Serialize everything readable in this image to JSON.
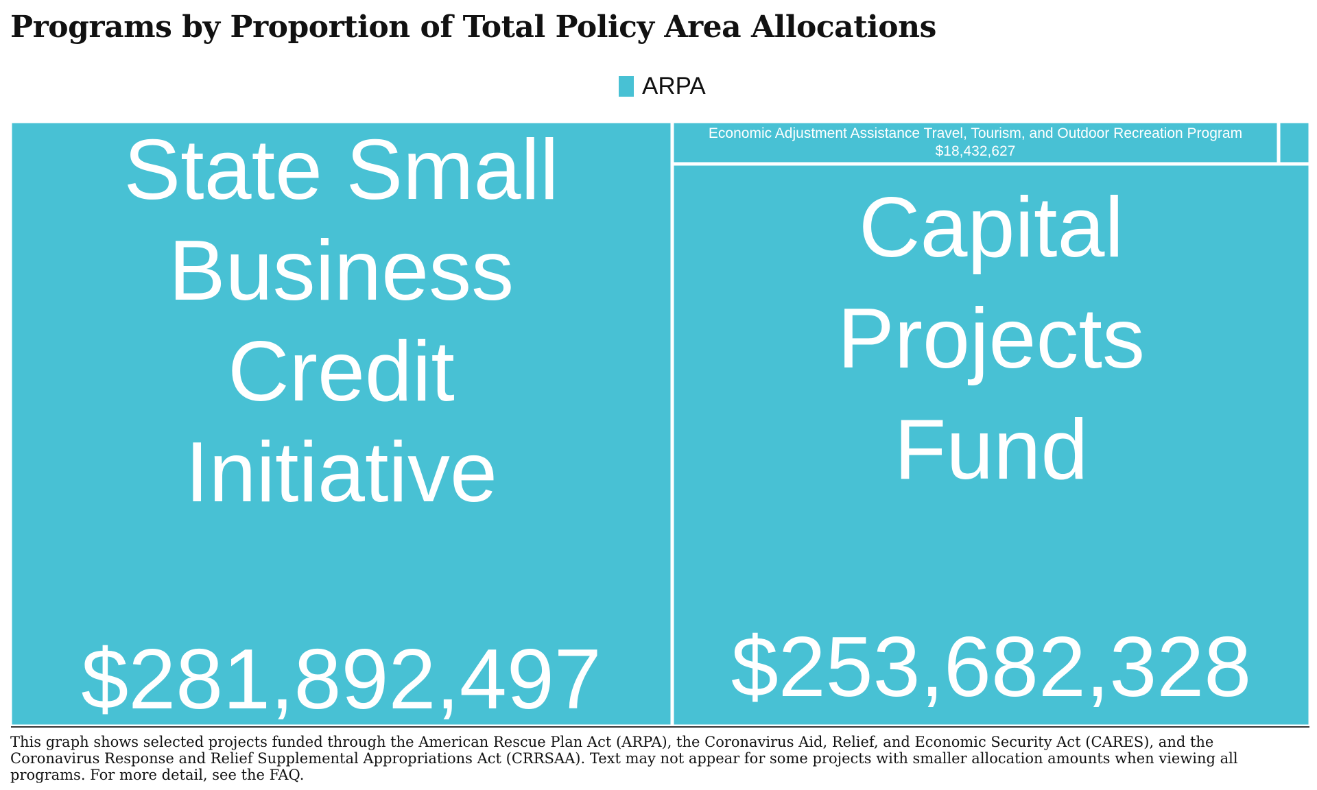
{
  "title": "Programs by Proportion of Total Policy Area Allocations",
  "legend": {
    "label": "ARPA",
    "color": "#48c1d4"
  },
  "chart_data": {
    "type": "treemap",
    "series": [
      {
        "name": "ARPA",
        "color": "#48c1d4",
        "items": [
          {
            "label": "State Small Business Credit Initiative",
            "value": 281892497,
            "value_label": "$281,892,497"
          },
          {
            "label": "Capital Projects Fund",
            "value": 253682328,
            "value_label": "$253,682,328"
          },
          {
            "label": "Economic Adjustment Assistance Travel, Tourism, and Outdoor Recreation Program",
            "value": 18432627,
            "value_label": "$18,432,627"
          },
          {
            "label": "",
            "value": null,
            "value_label": ""
          }
        ]
      }
    ]
  },
  "footnote": "This graph shows selected projects funded through the American Rescue Plan Act (ARPA), the Coronavirus Aid, Relief, and Economic Security Act (CARES), and the Coronavirus Response and Relief Supplemental Appropriations Act (CRRSAA). Text may not appear for some projects with smaller allocation amounts when viewing all programs. For more detail, see the FAQ."
}
